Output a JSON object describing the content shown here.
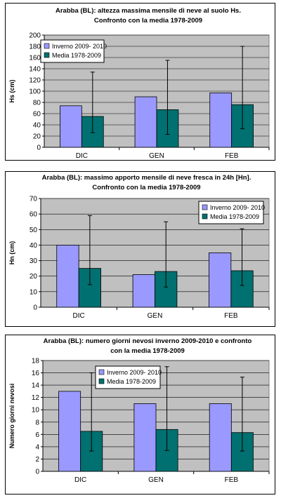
{
  "colors": {
    "inverno": "#9999ff",
    "media": "#007070",
    "plot_bg": "#c0c0c0",
    "gridline": "#000000",
    "error_bar": "#000000"
  },
  "chart_data": [
    {
      "type": "bar",
      "title": [
        "Arabba (BL): altezza massima mensile di neve al suolo Hs.",
        "Confronto con la media 1978-2009"
      ],
      "xlabel": "",
      "ylabel": "Hs (cm)",
      "categories": [
        "DIC",
        "GEN",
        "FEB"
      ],
      "ylim": [
        0,
        200
      ],
      "ytick_step": 20,
      "grid": true,
      "legend_position": "top-left",
      "series": [
        {
          "name": "Inverno 2009- 2010",
          "color_key": "inverno",
          "values": [
            74,
            90,
            97
          ]
        },
        {
          "name": "Media 1978-2009",
          "color_key": "media",
          "values": [
            55,
            67,
            76
          ],
          "error_low": [
            26,
            23,
            33
          ],
          "error_high": [
            134,
            155,
            180
          ]
        }
      ]
    },
    {
      "type": "bar",
      "title": [
        "Arabba (BL): massimo apporto mensile di neve fresca in 24h [Hn].",
        "Confronto con la media 1978-2009"
      ],
      "xlabel": "",
      "ylabel": "Hn (cm)",
      "categories": [
        "DIC",
        "GEN",
        "FEB"
      ],
      "ylim": [
        0,
        70
      ],
      "ytick_step": 10,
      "grid": true,
      "legend_position": "top-right",
      "series": [
        {
          "name": "Inverno 2009- 2010",
          "color_key": "inverno",
          "values": [
            40,
            21,
            35
          ]
        },
        {
          "name": "Media 1978-2009",
          "color_key": "media",
          "values": [
            25,
            23,
            23.5
          ],
          "error_low": [
            14.5,
            13,
            14
          ],
          "error_high": [
            59,
            55,
            50.5
          ]
        }
      ]
    },
    {
      "type": "bar",
      "title": [
        "Arabba (BL): numero giorni nevosi inverno 2009-2010 e confronto",
        "con la media 1978-2009"
      ],
      "xlabel": "",
      "ylabel": "Numero giorni nevosi",
      "categories": [
        "DIC",
        "GEN",
        "FEB"
      ],
      "ylim": [
        0,
        18
      ],
      "ytick_step": 2,
      "grid": true,
      "legend_position": "top-left",
      "series": [
        {
          "name": "Inverno 2009- 2010",
          "color_key": "inverno",
          "values": [
            13,
            11,
            11
          ]
        },
        {
          "name": "Media 1978-2009",
          "color_key": "media",
          "values": [
            6.5,
            6.8,
            6.3
          ],
          "error_low": [
            3.3,
            3.4,
            3.3
          ],
          "error_high": [
            16,
            17,
            15.3
          ]
        }
      ]
    }
  ]
}
